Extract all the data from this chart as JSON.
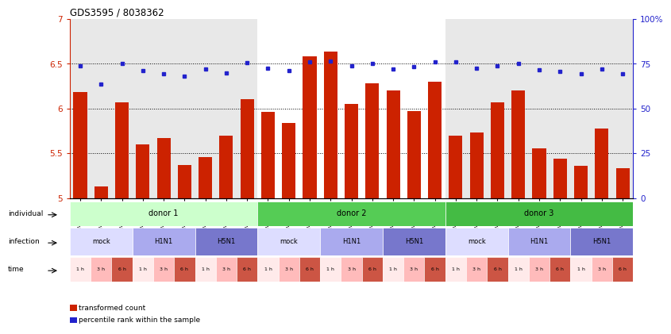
{
  "title": "GDS3595 / 8038362",
  "samples": [
    "GSM466570",
    "GSM466573",
    "GSM466576",
    "GSM466571",
    "GSM466574",
    "GSM466577",
    "GSM466572",
    "GSM466575",
    "GSM466578",
    "GSM466579",
    "GSM466582",
    "GSM466585",
    "GSM466580",
    "GSM466583",
    "GSM466586",
    "GSM466581",
    "GSM466584",
    "GSM466587",
    "GSM466588",
    "GSM466591",
    "GSM466594",
    "GSM466589",
    "GSM466592",
    "GSM466595",
    "GSM466590",
    "GSM466593",
    "GSM466596"
  ],
  "bar_values": [
    6.18,
    5.13,
    6.07,
    5.6,
    5.67,
    5.37,
    5.46,
    5.7,
    6.1,
    5.96,
    5.84,
    6.58,
    6.64,
    6.05,
    6.28,
    6.2,
    5.97,
    6.3,
    5.7,
    5.73,
    6.07,
    6.2,
    5.55,
    5.44,
    5.36,
    5.78,
    5.33
  ],
  "dot_values": [
    6.48,
    6.27,
    6.5,
    6.42,
    6.39,
    6.36,
    6.44,
    6.4,
    6.51,
    6.45,
    6.42,
    6.52,
    6.53,
    6.48,
    6.5,
    6.44,
    6.47,
    6.52,
    6.52,
    6.45,
    6.48,
    6.5,
    6.43,
    6.41,
    6.39,
    6.44,
    6.39
  ],
  "ylim": [
    5.0,
    7.0
  ],
  "yticks": [
    5.0,
    5.5,
    6.0,
    6.5,
    7.0
  ],
  "ytick_labels": [
    "5",
    "5.5",
    "6",
    "6.5",
    "7"
  ],
  "right_ytick_labels": [
    "0",
    "25",
    "50",
    "75",
    "100%"
  ],
  "bar_color": "#cc2200",
  "dot_color": "#2222cc",
  "individual_row": [
    {
      "label": "donor 1",
      "start": 0,
      "end": 9,
      "color": "#ccffcc"
    },
    {
      "label": "donor 2",
      "start": 9,
      "end": 18,
      "color": "#55cc55"
    },
    {
      "label": "donor 3",
      "start": 18,
      "end": 27,
      "color": "#44bb44"
    }
  ],
  "infection_row": [
    {
      "label": "mock",
      "start": 0,
      "end": 3,
      "color": "#ddddff"
    },
    {
      "label": "H1N1",
      "start": 3,
      "end": 6,
      "color": "#aaaaee"
    },
    {
      "label": "H5N1",
      "start": 6,
      "end": 9,
      "color": "#7777cc"
    },
    {
      "label": "mock",
      "start": 9,
      "end": 12,
      "color": "#ddddff"
    },
    {
      "label": "H1N1",
      "start": 12,
      "end": 15,
      "color": "#aaaaee"
    },
    {
      "label": "H5N1",
      "start": 15,
      "end": 18,
      "color": "#7777cc"
    },
    {
      "label": "mock",
      "start": 18,
      "end": 21,
      "color": "#ddddff"
    },
    {
      "label": "H1N1",
      "start": 21,
      "end": 24,
      "color": "#aaaaee"
    },
    {
      "label": "H5N1",
      "start": 24,
      "end": 27,
      "color": "#7777cc"
    }
  ],
  "time_colors": [
    "#ffeaea",
    "#ffbbbb",
    "#cc5544"
  ],
  "row_labels": [
    "individual",
    "infection",
    "time"
  ],
  "legend": [
    {
      "label": "transformed count",
      "color": "#cc2200"
    },
    {
      "label": "percentile rank within the sample",
      "color": "#2222cc"
    }
  ],
  "n_samples": 27
}
